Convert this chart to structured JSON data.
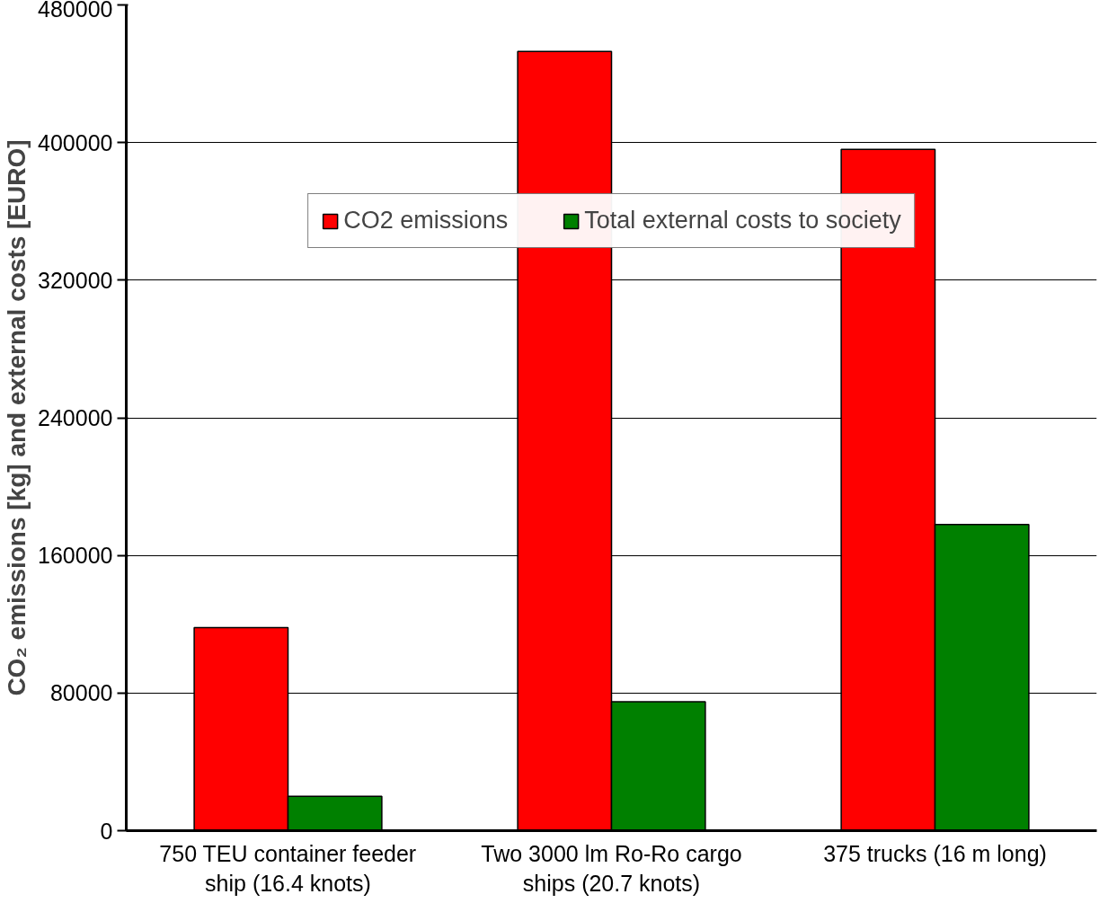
{
  "chart_data": {
    "type": "bar",
    "ylabel": "CO₂ emissions [kg] and external costs [EURO]",
    "categories": [
      "750 TEU container feeder ship (16.4 knots)",
      "Two 3000 lm Ro-Ro cargo ships (20.7 knots)",
      "375 trucks (16 m long)"
    ],
    "series": [
      {
        "name": "CO2 emissions",
        "color": "#ff0000",
        "values": [
          118000,
          453000,
          396000
        ]
      },
      {
        "name": "Total external costs to society",
        "color": "#008000",
        "values": [
          20000,
          75000,
          178000
        ]
      }
    ],
    "ylim": [
      0,
      480000
    ],
    "yticks": [
      0,
      80000,
      160000,
      240000,
      320000,
      400000,
      480000
    ],
    "grid": "y",
    "legend": "top"
  }
}
